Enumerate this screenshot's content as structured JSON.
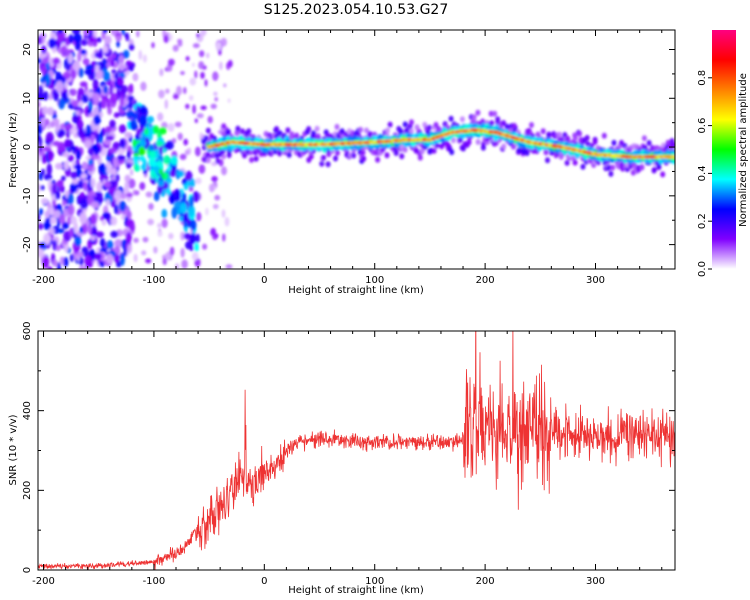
{
  "figure_title": "S125.2023.054.10.53.G27",
  "chart_data": [
    {
      "type": "heatmap",
      "title": "S125.2023.054.10.53.G27",
      "xlabel": "Height of straight line (km)",
      "ylabel": "Frequency (Hz)",
      "xlim": [
        -205,
        372
      ],
      "ylim": [
        -25,
        24
      ],
      "xticks": [
        -200,
        -100,
        0,
        100,
        200,
        300
      ],
      "yticks": [
        -20,
        -10,
        0,
        10,
        20
      ],
      "colorbar": {
        "label": "Normalized spectral amplitude",
        "range": [
          0,
          1
        ],
        "ticks": [
          0.0,
          0.2,
          0.4,
          0.6,
          0.8
        ],
        "colors": [
          "#ffffff",
          "#8000ff",
          "#0000ff",
          "#00ffff",
          "#00ff00",
          "#ffff00",
          "#ff8000",
          "#ff0000",
          "#ff0080"
        ]
      },
      "ridge": {
        "x": [
          -50,
          -30,
          0,
          50,
          100,
          130,
          150,
          170,
          190,
          210,
          240,
          270,
          300,
          330,
          372
        ],
        "frequency": [
          0,
          1,
          0.5,
          0.5,
          1,
          1.5,
          1.5,
          3,
          3.5,
          3,
          1,
          0,
          -1.5,
          -2,
          -2
        ]
      },
      "grid": false
    },
    {
      "type": "line",
      "xlabel": "Height of straight line (km)",
      "ylabel": "SNR (10 * v/v)",
      "xlim": [
        -205,
        372
      ],
      "ylim": [
        0,
        600
      ],
      "xticks": [
        -200,
        -100,
        0,
        100,
        200,
        300
      ],
      "yticks": [
        0,
        200,
        400,
        600
      ],
      "color": "#ee3333",
      "series": [
        {
          "x": [
            -205,
            -150,
            -100,
            -75,
            -60,
            -50,
            -40,
            -30,
            -20,
            -15,
            -10,
            0,
            10,
            20,
            30,
            50,
            100,
            150,
            175,
            185,
            200,
            225,
            250,
            275,
            300,
            325,
            350,
            372
          ],
          "values": [
            10,
            10,
            20,
            50,
            100,
            120,
            150,
            200,
            240,
            230,
            220,
            250,
            260,
            300,
            320,
            330,
            320,
            320,
            320,
            360,
            370,
            350,
            340,
            340,
            330,
            340,
            340,
            330
          ]
        }
      ],
      "grid": false
    }
  ]
}
